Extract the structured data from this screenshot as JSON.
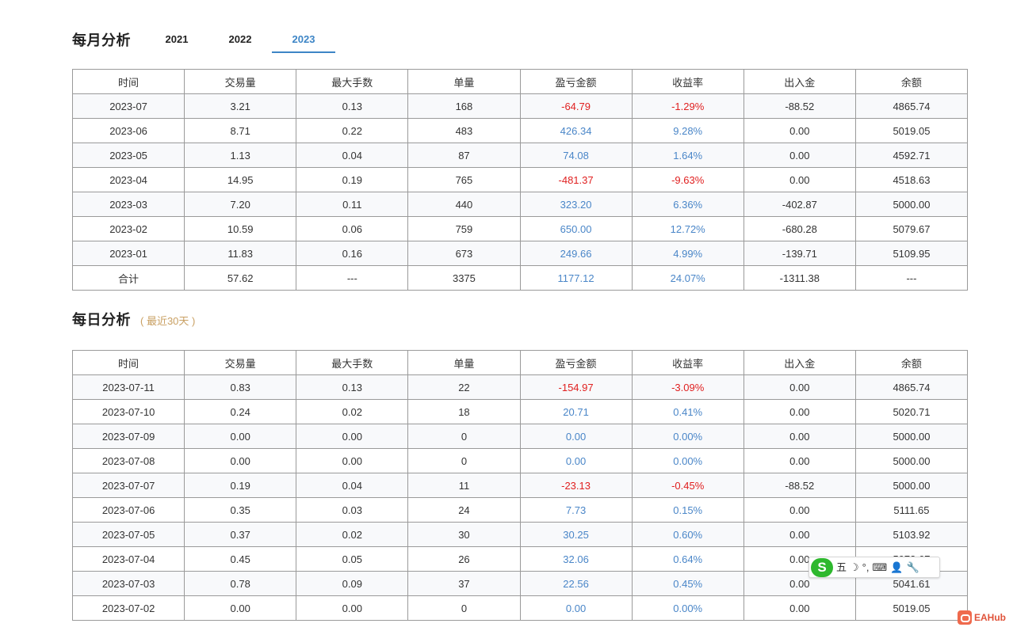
{
  "monthly": {
    "title": "每月分析",
    "tabs": [
      {
        "label": "2021",
        "active": false
      },
      {
        "label": "2022",
        "active": false
      },
      {
        "label": "2023",
        "active": true
      }
    ],
    "columns": [
      "时间",
      "交易量",
      "最大手数",
      "单量",
      "盈亏金额",
      "收益率",
      "出入金",
      "余额"
    ],
    "rows": [
      {
        "time": "2023-07",
        "volume": "3.21",
        "max_lots": "0.13",
        "orders": "168",
        "pnl": "-64.79",
        "yield": "-1.29%",
        "deposit": "-88.52",
        "balance": "4865.74"
      },
      {
        "time": "2023-06",
        "volume": "8.71",
        "max_lots": "0.22",
        "orders": "483",
        "pnl": "426.34",
        "yield": "9.28%",
        "deposit": "0.00",
        "balance": "5019.05"
      },
      {
        "time": "2023-05",
        "volume": "1.13",
        "max_lots": "0.04",
        "orders": "87",
        "pnl": "74.08",
        "yield": "1.64%",
        "deposit": "0.00",
        "balance": "4592.71"
      },
      {
        "time": "2023-04",
        "volume": "14.95",
        "max_lots": "0.19",
        "orders": "765",
        "pnl": "-481.37",
        "yield": "-9.63%",
        "deposit": "0.00",
        "balance": "4518.63"
      },
      {
        "time": "2023-03",
        "volume": "7.20",
        "max_lots": "0.11",
        "orders": "440",
        "pnl": "323.20",
        "yield": "6.36%",
        "deposit": "-402.87",
        "balance": "5000.00"
      },
      {
        "time": "2023-02",
        "volume": "10.59",
        "max_lots": "0.06",
        "orders": "759",
        "pnl": "650.00",
        "yield": "12.72%",
        "deposit": "-680.28",
        "balance": "5079.67"
      },
      {
        "time": "2023-01",
        "volume": "11.83",
        "max_lots": "0.16",
        "orders": "673",
        "pnl": "249.66",
        "yield": "4.99%",
        "deposit": "-139.71",
        "balance": "5109.95"
      },
      {
        "time": "合计",
        "volume": "57.62",
        "max_lots": "---",
        "orders": "3375",
        "pnl": "1177.12",
        "yield": "24.07%",
        "deposit": "-1311.38",
        "balance": "---"
      }
    ]
  },
  "daily": {
    "title": "每日分析",
    "subtitle": "( 最近30天 )",
    "columns": [
      "时间",
      "交易量",
      "最大手数",
      "单量",
      "盈亏金额",
      "收益率",
      "出入金",
      "余额"
    ],
    "rows": [
      {
        "time": "2023-07-11",
        "volume": "0.83",
        "max_lots": "0.13",
        "orders": "22",
        "pnl": "-154.97",
        "yield": "-3.09%",
        "deposit": "0.00",
        "balance": "4865.74"
      },
      {
        "time": "2023-07-10",
        "volume": "0.24",
        "max_lots": "0.02",
        "orders": "18",
        "pnl": "20.71",
        "yield": "0.41%",
        "deposit": "0.00",
        "balance": "5020.71"
      },
      {
        "time": "2023-07-09",
        "volume": "0.00",
        "max_lots": "0.00",
        "orders": "0",
        "pnl": "0.00",
        "yield": "0.00%",
        "deposit": "0.00",
        "balance": "5000.00"
      },
      {
        "time": "2023-07-08",
        "volume": "0.00",
        "max_lots": "0.00",
        "orders": "0",
        "pnl": "0.00",
        "yield": "0.00%",
        "deposit": "0.00",
        "balance": "5000.00"
      },
      {
        "time": "2023-07-07",
        "volume": "0.19",
        "max_lots": "0.04",
        "orders": "11",
        "pnl": "-23.13",
        "yield": "-0.45%",
        "deposit": "-88.52",
        "balance": "5000.00"
      },
      {
        "time": "2023-07-06",
        "volume": "0.35",
        "max_lots": "0.03",
        "orders": "24",
        "pnl": "7.73",
        "yield": "0.15%",
        "deposit": "0.00",
        "balance": "5111.65"
      },
      {
        "time": "2023-07-05",
        "volume": "0.37",
        "max_lots": "0.02",
        "orders": "30",
        "pnl": "30.25",
        "yield": "0.60%",
        "deposit": "0.00",
        "balance": "5103.92"
      },
      {
        "time": "2023-07-04",
        "volume": "0.45",
        "max_lots": "0.05",
        "orders": "26",
        "pnl": "32.06",
        "yield": "0.64%",
        "deposit": "0.00",
        "balance": "5073.67"
      },
      {
        "time": "2023-07-03",
        "volume": "0.78",
        "max_lots": "0.09",
        "orders": "37",
        "pnl": "22.56",
        "yield": "0.45%",
        "deposit": "0.00",
        "balance": "5041.61"
      },
      {
        "time": "2023-07-02",
        "volume": "0.00",
        "max_lots": "0.00",
        "orders": "0",
        "pnl": "0.00",
        "yield": "0.00%",
        "deposit": "0.00",
        "balance": "5019.05"
      }
    ]
  },
  "colors": {
    "negative": "#e02020",
    "positive": "#4a86c8",
    "tab_active": "#3d85c6",
    "subtitle": "#c9a063"
  },
  "ime_toolbar": {
    "logo": "S",
    "items": [
      {
        "icon": "wubi-mode-icon",
        "glyph": "五"
      },
      {
        "icon": "moon-icon",
        "glyph": "☽"
      },
      {
        "icon": "punctuation-icon",
        "glyph": "°,"
      },
      {
        "icon": "keyboard-icon",
        "glyph": "⌨"
      },
      {
        "icon": "user-icon",
        "glyph": "👤"
      },
      {
        "icon": "wrench-icon",
        "glyph": "🔧"
      }
    ]
  },
  "watermark": {
    "text": "EAHub"
  }
}
